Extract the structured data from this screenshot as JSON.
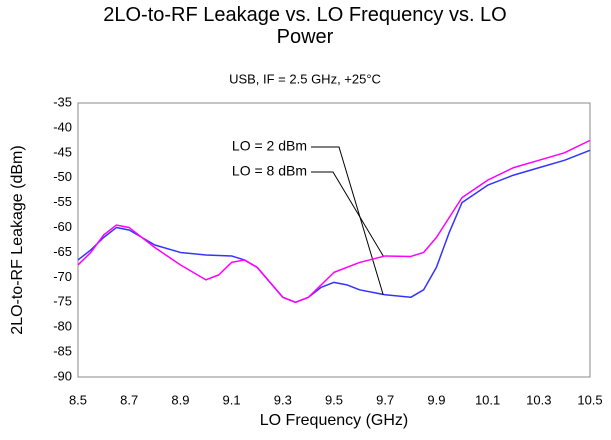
{
  "chart_data": {
    "type": "line",
    "title": "2LO-to-RF Leakage vs. LO Frequency vs. LO Power",
    "subtitle": "USB, IF = 2.5 GHz, +25°C",
    "x_label": "LO Frequency (GHz)",
    "y_label": "2LO-to-RF Leakage (dBm)",
    "xlim": [
      8.5,
      10.5
    ],
    "xticks": [
      8.5,
      8.7,
      8.9,
      9.1,
      9.3,
      9.5,
      9.7,
      9.9,
      10.1,
      10.3,
      10.5
    ],
    "ylim": [
      -90,
      -35
    ],
    "yticks": [
      -35,
      -40,
      -45,
      -50,
      -55,
      -60,
      -65,
      -70,
      -75,
      -80,
      -85,
      -90
    ],
    "grid": false,
    "series": [
      {
        "name": "LO = 2 dBm",
        "color": "#3333ff",
        "x": [
          8.5,
          8.55,
          8.6,
          8.65,
          8.7,
          8.8,
          8.9,
          9.0,
          9.1,
          9.15,
          9.2,
          9.25,
          9.3,
          9.35,
          9.4,
          9.45,
          9.5,
          9.55,
          9.6,
          9.7,
          9.8,
          9.85,
          9.9,
          9.95,
          10.0,
          10.1,
          10.2,
          10.3,
          10.4,
          10.5
        ],
        "values": [
          -66.5,
          -64.5,
          -62,
          -60,
          -60.5,
          -63.5,
          -65,
          -65.5,
          -65.7,
          -66.5,
          -68,
          -71,
          -74,
          -75,
          -74,
          -72,
          -71,
          -71.5,
          -72.5,
          -73.5,
          -74,
          -72.5,
          -68,
          -61,
          -55,
          -51.5,
          -49.5,
          -48,
          -46.5,
          -44.5
        ]
      },
      {
        "name": "LO = 8 dBm",
        "color": "#ff00ff",
        "x": [
          8.5,
          8.55,
          8.6,
          8.65,
          8.7,
          8.8,
          8.9,
          9.0,
          9.05,
          9.1,
          9.15,
          9.2,
          9.3,
          9.35,
          9.4,
          9.5,
          9.6,
          9.7,
          9.8,
          9.85,
          9.9,
          10.0,
          10.1,
          10.2,
          10.3,
          10.4,
          10.5
        ],
        "values": [
          -67.5,
          -65,
          -61.5,
          -59.5,
          -60,
          -64,
          -67.5,
          -70.5,
          -69.5,
          -67,
          -66.5,
          -68,
          -74,
          -75,
          -74,
          -69,
          -67,
          -65.7,
          -65.8,
          -65,
          -62,
          -54,
          -50.5,
          -48,
          -46.5,
          -45,
          -42.5
        ]
      }
    ]
  }
}
